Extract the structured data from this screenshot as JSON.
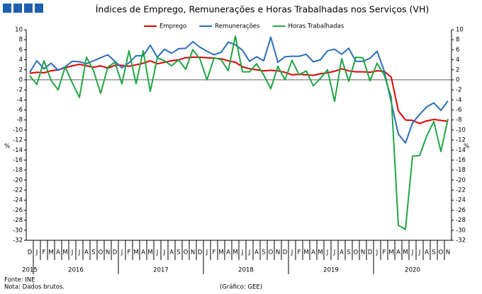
{
  "chart_data": {
    "type": "line",
    "title": "Índices de Emprego,  Remunerações  e Horas Trabalhadas  nos Serviços (VH)",
    "categories": [
      "D",
      "J",
      "F",
      "M",
      "A",
      "M",
      "J",
      "J",
      "A",
      "S",
      "O",
      "N",
      "D",
      "J",
      "F",
      "M",
      "A",
      "M",
      "J",
      "J",
      "A",
      "S",
      "O",
      "N",
      "D",
      "J",
      "F",
      "M",
      "A",
      "M",
      "J",
      "J",
      "A",
      "S",
      "O",
      "N",
      "D",
      "J",
      "F",
      "M",
      "A",
      "M",
      "J",
      "J",
      "A",
      "S",
      "O",
      "N",
      "D",
      "J",
      "F",
      "M",
      "A",
      "M",
      "J",
      "J",
      "A",
      "S",
      "O",
      "N"
    ],
    "years": [
      "2015",
      "2016",
      "2017",
      "2018",
      "2019",
      "2020"
    ],
    "series": [
      {
        "name": "Emprego",
        "color": "#e00000",
        "values": [
          1.3,
          1.5,
          1.4,
          1.8,
          2.0,
          2.4,
          2.8,
          3.1,
          2.8,
          2.5,
          2.8,
          2.3,
          2.9,
          2.9,
          2.7,
          3.0,
          3.3,
          3.8,
          3.2,
          3.5,
          3.8,
          4.0,
          4.4,
          4.5,
          4.5,
          4.4,
          4.3,
          4.2,
          3.8,
          3.5,
          2.6,
          2.2,
          2.0,
          1.8,
          1.9,
          1.8,
          1.5,
          1.0,
          1.1,
          1.0,
          0.9,
          1.2,
          1.4,
          1.7,
          2.2,
          1.8,
          1.6,
          1.6,
          1.5,
          1.8,
          1.7,
          0.5,
          -6.2,
          -8.0,
          -8.1,
          -8.7,
          -8.2,
          -7.9,
          -8.1,
          -8.3
        ]
      },
      {
        "name": "Remunerações",
        "color": "#2a6ebb",
        "values": [
          1.5,
          3.8,
          2.2,
          3.3,
          1.9,
          2.6,
          3.7,
          3.6,
          3.2,
          3.8,
          4.4,
          5.0,
          3.7,
          2.4,
          3.4,
          4.8,
          4.8,
          6.9,
          4.5,
          6.1,
          5.3,
          6.2,
          6.3,
          7.6,
          6.5,
          5.7,
          5.0,
          5.5,
          7.5,
          7.0,
          5.9,
          3.7,
          4.6,
          3.8,
          8.5,
          3.5,
          4.6,
          4.7,
          4.7,
          5.1,
          3.6,
          4.0,
          5.8,
          6.1,
          5.1,
          6.3,
          3.7,
          3.7,
          4.3,
          5.7,
          1.8,
          -4.5,
          -10.8,
          -12.6,
          -8.6,
          -6.9,
          -5.4,
          -4.6,
          -6.1,
          -4.2
        ]
      },
      {
        "name": "Horas Trabalhadas",
        "color": "#21a645",
        "values": [
          0.8,
          -0.9,
          3.8,
          -0.1,
          -2.0,
          2.6,
          -0.6,
          -3.5,
          4.5,
          1.8,
          -2.7,
          2.5,
          3.5,
          -0.8,
          5.8,
          -0.8,
          5.8,
          -2.3,
          4.4,
          3.8,
          2.8,
          4.0,
          2.1,
          6.0,
          4.2,
          0.0,
          4.4,
          4.0,
          1.8,
          8.7,
          1.6,
          1.6,
          3.2,
          1.0,
          -1.8,
          2.7,
          0.0,
          3.9,
          1.0,
          1.8,
          -1.2,
          0.3,
          2.0,
          -4.3,
          4.2,
          -0.3,
          4.5,
          4.4,
          -0.2,
          3.3,
          1.0,
          -3.5,
          -29.0,
          -29.8,
          -15.2,
          -15.1,
          -11.2,
          -8.3,
          -14.3,
          -7.8
        ]
      }
    ],
    "ylim": [
      -32,
      10
    ],
    "yticks": [
      -32,
      -30,
      -28,
      -26,
      -24,
      -22,
      -20,
      -18,
      -16,
      -14,
      -12,
      -10,
      -8,
      -6,
      -4,
      -2,
      0,
      2,
      4,
      6,
      8,
      10
    ],
    "y2lim": [
      -32,
      10
    ],
    "y2ticks": [
      -32,
      -30,
      -28,
      -26,
      -24,
      -22,
      -20,
      -18,
      -16,
      -14,
      -12,
      -10,
      -8,
      -6,
      -4,
      -2,
      0,
      2,
      4,
      6,
      8,
      10
    ],
    "y_label": "%",
    "y2_label": "%",
    "source": "Fonte: INE",
    "note": "Nota: Dados brutos.",
    "credit": "(Gráfico: GEE)",
    "legend": "top",
    "grid": false
  }
}
